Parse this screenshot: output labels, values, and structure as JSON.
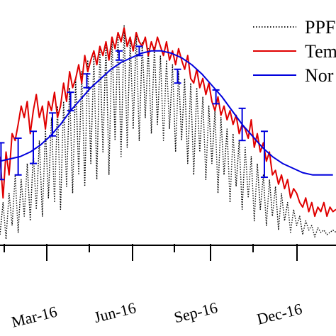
{
  "chart_data": {
    "type": "line",
    "title": "",
    "xlabel": "",
    "ylabel": "",
    "x_tick_labels": [
      "Mar-16",
      "Jun-16",
      "Sep-16",
      "Dec-16"
    ],
    "legend": {
      "placement": "top-right",
      "entries": [
        "PPF",
        "Tem",
        "Nor"
      ]
    },
    "colors": {
      "ppfd": "#000000",
      "temperature": "#e00000",
      "normal": "#0000dd"
    },
    "ylim": [
      0,
      100
    ],
    "series": [
      {
        "name": "PPF",
        "style": "dotted",
        "x_days": [
          0,
          3,
          6,
          9,
          12,
          15,
          18,
          21,
          24,
          27,
          30,
          33,
          36,
          39,
          42,
          45,
          48,
          51,
          54,
          57,
          60,
          63,
          66,
          69,
          72,
          75,
          78,
          81,
          84,
          87,
          90,
          93,
          96,
          99,
          102,
          105,
          108,
          111,
          114,
          117,
          120,
          123,
          126,
          129,
          132,
          135,
          138,
          141,
          144,
          147,
          150,
          153,
          156,
          159,
          162,
          165,
          168,
          171,
          174,
          177,
          180,
          183,
          186,
          189,
          192,
          195,
          198,
          201,
          204,
          207,
          210,
          213,
          216,
          219,
          222,
          225,
          228,
          231,
          234,
          237,
          240,
          243,
          246,
          249,
          252,
          255,
          258,
          261,
          264,
          267,
          270,
          273,
          276,
          279,
          282,
          285,
          288,
          291,
          294,
          297,
          300,
          303,
          306,
          309,
          312,
          315,
          318,
          321,
          324,
          327,
          330,
          333
        ],
        "values": [
          4,
          18,
          2,
          22,
          8,
          30,
          5,
          28,
          12,
          35,
          10,
          40,
          15,
          45,
          12,
          50,
          20,
          55,
          18,
          60,
          15,
          62,
          25,
          68,
          22,
          72,
          30,
          75,
          25,
          80,
          35,
          82,
          28,
          85,
          40,
          88,
          30,
          90,
          45,
          92,
          38,
          95,
          42,
          90,
          50,
          92,
          45,
          88,
          55,
          85,
          48,
          86,
          52,
          82,
          45,
          80,
          50,
          78,
          40,
          75,
          45,
          72,
          35,
          70,
          30,
          68,
          40,
          64,
          28,
          60,
          35,
          58,
          22,
          55,
          30,
          50,
          18,
          48,
          25,
          45,
          15,
          42,
          20,
          38,
          10,
          35,
          15,
          30,
          8,
          28,
          12,
          25,
          6,
          22,
          10,
          18,
          5,
          15,
          8,
          12,
          4,
          10,
          6,
          8,
          3,
          7,
          5,
          6,
          4,
          5,
          6,
          5
        ]
      },
      {
        "name": "Tem",
        "style": "solid",
        "x_days": [
          0,
          3,
          6,
          9,
          12,
          15,
          18,
          21,
          24,
          27,
          30,
          33,
          36,
          39,
          42,
          45,
          48,
          51,
          54,
          57,
          60,
          63,
          66,
          69,
          72,
          75,
          78,
          81,
          84,
          87,
          90,
          93,
          96,
          99,
          102,
          105,
          108,
          111,
          114,
          117,
          120,
          123,
          126,
          129,
          132,
          135,
          138,
          141,
          144,
          147,
          150,
          153,
          156,
          159,
          162,
          165,
          168,
          171,
          174,
          177,
          180,
          183,
          186,
          189,
          192,
          195,
          198,
          201,
          204,
          207,
          210,
          213,
          216,
          219,
          222,
          225,
          228,
          231,
          234,
          237,
          240,
          243,
          246,
          249,
          252,
          255,
          258,
          261,
          264,
          267,
          270,
          273,
          276,
          279,
          282,
          285,
          288,
          291,
          294,
          297,
          300,
          303,
          306,
          309,
          312,
          315,
          318,
          321,
          324,
          327,
          330,
          333
        ],
        "values": [
          38,
          20,
          40,
          30,
          48,
          45,
          52,
          60,
          55,
          62,
          48,
          58,
          65,
          55,
          60,
          50,
          62,
          58,
          66,
          55,
          60,
          70,
          62,
          75,
          68,
          72,
          78,
          70,
          82,
          75,
          80,
          84,
          78,
          86,
          82,
          88,
          80,
          90,
          85,
          92,
          88,
          94,
          86,
          90,
          84,
          92,
          88,
          86,
          90,
          82,
          88,
          84,
          90,
          86,
          82,
          88,
          80,
          84,
          78,
          85,
          80,
          76,
          82,
          72,
          70,
          76,
          68,
          72,
          65,
          70,
          62,
          58,
          64,
          56,
          60,
          54,
          58,
          52,
          56,
          48,
          52,
          50,
          46,
          54,
          42,
          48,
          40,
          44,
          36,
          40,
          30,
          32,
          26,
          30,
          24,
          28,
          20,
          24,
          22,
          18,
          16,
          20,
          14,
          18,
          12,
          16,
          14,
          18,
          12,
          16,
          14,
          15
        ]
      },
      {
        "name": "Nor",
        "style": "solid",
        "x_days": [
          0,
          10,
          20,
          30,
          40,
          50,
          60,
          70,
          80,
          90,
          100,
          110,
          120,
          130,
          140,
          150,
          160,
          170,
          180,
          190,
          200,
          210,
          220,
          230,
          240,
          250,
          260,
          270,
          280,
          290,
          300,
          310,
          320,
          330
        ],
        "values": [
          36,
          37,
          38,
          40,
          43,
          47,
          52,
          58,
          63,
          68,
          72,
          76,
          79,
          81,
          83,
          84,
          84,
          83,
          81,
          78,
          74,
          69,
          64,
          58,
          52,
          47,
          42,
          38,
          35,
          33,
          31,
          30,
          30,
          30
        ],
        "error_bars": [
          {
            "x_day": 1,
            "y": 36,
            "err": 8
          },
          {
            "x_day": 18,
            "y": 38,
            "err": 8
          },
          {
            "x_day": 33,
            "y": 42,
            "err": 7
          },
          {
            "x_day": 52,
            "y": 52,
            "err": 5
          },
          {
            "x_day": 70,
            "y": 62,
            "err": 4
          },
          {
            "x_day": 86,
            "y": 71,
            "err": 3
          },
          {
            "x_day": 118,
            "y": 82,
            "err": 2
          },
          {
            "x_day": 138,
            "y": 84,
            "err": 2
          },
          {
            "x_day": 176,
            "y": 73,
            "err": 3
          },
          {
            "x_day": 214,
            "y": 64,
            "err": 3
          },
          {
            "x_day": 240,
            "y": 52,
            "err": 7
          },
          {
            "x_day": 262,
            "y": 39,
            "err": 10
          }
        ]
      }
    ]
  }
}
